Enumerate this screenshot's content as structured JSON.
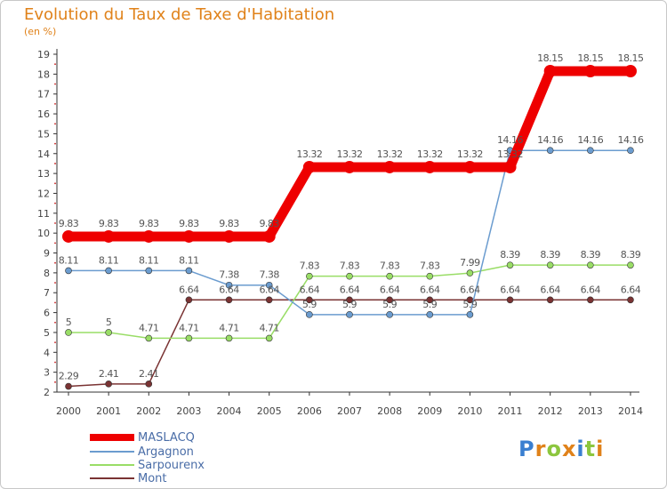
{
  "title": "Evolution du Taux de Taxe d'Habitation",
  "subtitle": "(en %)",
  "logo": "Proxiti",
  "chart_data": {
    "type": "line",
    "title": "Evolution du Taux de Taxe d'Habitation",
    "ylabel": "(en %)",
    "xlabel": "",
    "ylim": [
      2,
      19
    ],
    "yticks": [
      2,
      3,
      4,
      5,
      6,
      7,
      8,
      9,
      10,
      11,
      12,
      13,
      14,
      15,
      16,
      17,
      18,
      19
    ],
    "grid": false,
    "legend": "bottom-left",
    "x": [
      "2000",
      "2001",
      "2002",
      "2003",
      "2004",
      "2005",
      "2006",
      "2007",
      "2008",
      "2009",
      "2010",
      "2011",
      "2012",
      "2013",
      "2014"
    ],
    "series": [
      {
        "name": "MASLACQ",
        "color": "#ee0000",
        "values": [
          9.83,
          9.83,
          9.83,
          9.83,
          9.83,
          9.83,
          13.32,
          13.32,
          13.32,
          13.32,
          13.32,
          13.32,
          18.15,
          18.15,
          18.15
        ],
        "labels": [
          "9.83",
          "9.83",
          "9.83",
          "9.83",
          "9.83",
          "9.83",
          "13.32",
          "13.32",
          "13.32",
          "13.32",
          "13.32",
          "13.32",
          "18.15",
          "18.15",
          "18.15"
        ]
      },
      {
        "name": "Argagnon",
        "color": "#6b9ccf",
        "values": [
          8.11,
          8.11,
          8.11,
          8.11,
          7.38,
          7.38,
          5.9,
          5.9,
          5.9,
          5.9,
          5.9,
          14.16,
          14.16,
          14.16,
          14.16
        ],
        "labels": [
          "8.11",
          "8.11",
          "8.11",
          "8.11",
          "7.38",
          "7.38",
          "5.9",
          "5.9",
          "5.9",
          "5.9",
          "5.9",
          "14.16",
          "14.16",
          "14.16",
          "14.16"
        ]
      },
      {
        "name": "Sarpourenx",
        "color": "#99dd66",
        "values": [
          5,
          5,
          4.71,
          4.71,
          4.71,
          4.71,
          7.83,
          7.83,
          7.83,
          7.83,
          7.99,
          8.39,
          8.39,
          8.39,
          8.39
        ],
        "labels": [
          "5",
          "5",
          "4.71",
          "4.71",
          "4.71",
          "4.71",
          "7.83",
          "7.83",
          "7.83",
          "7.83",
          "7.99",
          "8.39",
          "8.39",
          "8.39",
          "8.39"
        ]
      },
      {
        "name": "Mont",
        "color": "#7a3333",
        "values": [
          2.29,
          2.41,
          2.41,
          6.64,
          6.64,
          6.64,
          6.64,
          6.64,
          6.64,
          6.64,
          6.64,
          6.64,
          6.64,
          6.64,
          6.64
        ],
        "labels": [
          "2.29",
          "2.41",
          "2.41",
          "6.64",
          "6.64",
          "6.64",
          "6.64",
          "6.64",
          "6.64",
          "6.64",
          "6.64",
          "6.64",
          "6.64",
          "6.64",
          "6.64"
        ]
      }
    ]
  }
}
